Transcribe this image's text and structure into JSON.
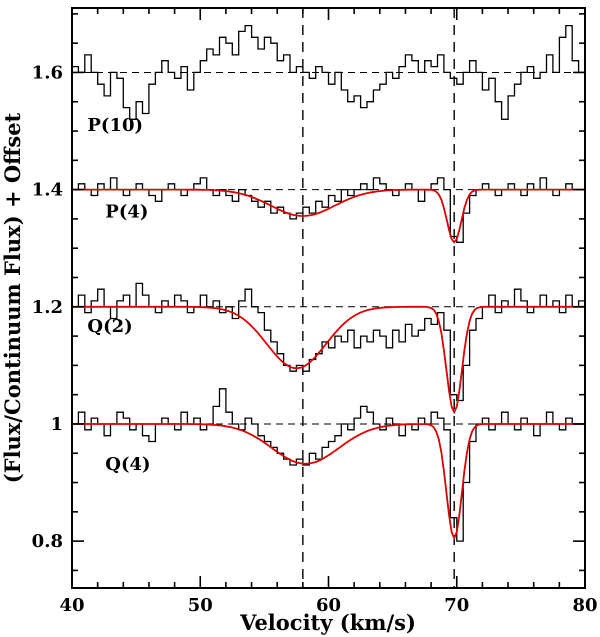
{
  "chart_data": {
    "type": "line",
    "title": "",
    "xlabel": "Velocity (km/s)",
    "ylabel": "(Flux/Continuum Flux) + Offset",
    "xlim": [
      40,
      80
    ],
    "ylim": [
      0.72,
      1.71
    ],
    "x_major_ticks": [
      40,
      50,
      60,
      70,
      80
    ],
    "x_minor_step": 2,
    "y_major_ticks": [
      0.8,
      1.0,
      1.2,
      1.4,
      1.6
    ],
    "y_tick_labels": [
      "0.8",
      "1",
      "1.2",
      "1.4",
      "1.6"
    ],
    "y_minor_step": 0.05,
    "grid": false,
    "legend": "none",
    "vertical_dashed_lines": [
      58.0,
      69.8
    ],
    "bin_width": 0.5,
    "x_start": 40,
    "colors": {
      "data": "#000000",
      "fit": "#dd0000",
      "dashed": "#000000"
    },
    "series": [
      {
        "name": "P(10)",
        "offset": 1.6,
        "label_pos": [
          41.2,
          1.5
        ],
        "fit": null,
        "values": [
          1.61,
          1.6,
          1.63,
          1.6,
          1.58,
          1.56,
          1.6,
          1.59,
          1.54,
          1.52,
          1.55,
          1.53,
          1.58,
          1.6,
          1.62,
          1.6,
          1.59,
          1.61,
          1.57,
          1.6,
          1.62,
          1.64,
          1.63,
          1.66,
          1.65,
          1.63,
          1.67,
          1.68,
          1.66,
          1.64,
          1.66,
          1.65,
          1.62,
          1.63,
          1.6,
          1.61,
          1.6,
          1.59,
          1.61,
          1.6,
          1.58,
          1.6,
          1.57,
          1.55,
          1.56,
          1.54,
          1.55,
          1.57,
          1.58,
          1.6,
          1.59,
          1.61,
          1.63,
          1.62,
          1.6,
          1.62,
          1.61,
          1.63,
          1.6,
          1.59,
          1.58,
          1.6,
          1.62,
          1.6,
          1.57,
          1.59,
          1.55,
          1.52,
          1.56,
          1.58,
          1.6,
          1.61,
          1.59,
          1.6,
          1.63,
          1.6,
          1.66,
          1.68,
          1.62,
          1.6
        ]
      },
      {
        "name": "P(4)",
        "offset": 1.4,
        "label_pos": [
          42.6,
          1.352
        ],
        "fit": {
          "components": [
            {
              "center": 58.0,
              "depth": 0.045,
              "sigma": 2.5
            },
            {
              "center": 69.8,
              "depth": 0.09,
              "sigma": 0.55
            }
          ]
        },
        "values": [
          1.4,
          1.41,
          1.4,
          1.39,
          1.41,
          1.4,
          1.42,
          1.4,
          1.39,
          1.4,
          1.41,
          1.4,
          1.39,
          1.38,
          1.4,
          1.41,
          1.4,
          1.39,
          1.4,
          1.41,
          1.42,
          1.4,
          1.39,
          1.4,
          1.39,
          1.38,
          1.4,
          1.39,
          1.38,
          1.37,
          1.38,
          1.36,
          1.37,
          1.36,
          1.35,
          1.36,
          1.37,
          1.36,
          1.38,
          1.37,
          1.39,
          1.38,
          1.4,
          1.39,
          1.4,
          1.41,
          1.4,
          1.42,
          1.41,
          1.4,
          1.39,
          1.4,
          1.41,
          1.4,
          1.38,
          1.4,
          1.41,
          1.42,
          1.4,
          1.32,
          1.31,
          1.36,
          1.39,
          1.4,
          1.41,
          1.4,
          1.39,
          1.4,
          1.41,
          1.4,
          1.39,
          1.41,
          1.4,
          1.42,
          1.4,
          1.39,
          1.4,
          1.41,
          1.4,
          1.4
        ]
      },
      {
        "name": "Q(2)",
        "offset": 1.2,
        "label_pos": [
          41.2,
          1.157
        ],
        "fit": {
          "components": [
            {
              "center": 57.5,
              "depth": 0.105,
              "sigma": 2.3
            },
            {
              "center": 69.8,
              "depth": 0.18,
              "sigma": 0.6
            }
          ]
        },
        "values": [
          1.2,
          1.22,
          1.19,
          1.21,
          1.23,
          1.2,
          1.18,
          1.21,
          1.22,
          1.2,
          1.24,
          1.22,
          1.2,
          1.19,
          1.21,
          1.2,
          1.22,
          1.21,
          1.19,
          1.2,
          1.22,
          1.2,
          1.21,
          1.19,
          1.2,
          1.18,
          1.21,
          1.23,
          1.2,
          1.19,
          1.16,
          1.14,
          1.12,
          1.1,
          1.09,
          1.1,
          1.09,
          1.11,
          1.12,
          1.14,
          1.13,
          1.15,
          1.14,
          1.16,
          1.13,
          1.15,
          1.14,
          1.16,
          1.15,
          1.13,
          1.16,
          1.14,
          1.17,
          1.15,
          1.16,
          1.18,
          1.17,
          1.19,
          1.16,
          1.05,
          1.04,
          1.1,
          1.16,
          1.18,
          1.2,
          1.22,
          1.19,
          1.21,
          1.2,
          1.23,
          1.21,
          1.19,
          1.2,
          1.22,
          1.2,
          1.21,
          1.19,
          1.22,
          1.2,
          1.21
        ]
      },
      {
        "name": "Q(4)",
        "offset": 1.0,
        "label_pos": [
          42.6,
          0.921
        ],
        "fit": {
          "components": [
            {
              "center": 58.2,
              "depth": 0.068,
              "sigma": 2.6
            },
            {
              "center": 69.8,
              "depth": 0.195,
              "sigma": 0.6
            }
          ]
        },
        "values": [
          1.0,
          1.02,
          0.99,
          1.01,
          1.0,
          0.98,
          1.0,
          1.02,
          1.01,
          0.99,
          1.0,
          0.98,
          0.97,
          1.0,
          1.01,
          1.0,
          0.99,
          1.02,
          1.0,
          1.01,
          0.99,
          1.0,
          1.03,
          1.06,
          1.02,
          1.0,
          0.99,
          1.01,
          1.0,
          0.98,
          0.97,
          0.96,
          0.95,
          0.94,
          0.93,
          0.94,
          0.93,
          0.95,
          0.94,
          0.96,
          0.97,
          0.98,
          1.0,
          0.99,
          1.01,
          1.03,
          1.02,
          1.0,
          0.99,
          1.01,
          1.0,
          0.98,
          1.0,
          0.99,
          1.01,
          1.0,
          1.02,
          1.01,
          0.99,
          0.84,
          0.8,
          0.9,
          0.97,
          1.0,
          1.01,
          0.99,
          1.0,
          1.02,
          1.0,
          0.99,
          1.01,
          1.0,
          0.98,
          1.0,
          1.02,
          1.0,
          0.99,
          1.01,
          1.0,
          1.0
        ]
      }
    ]
  }
}
